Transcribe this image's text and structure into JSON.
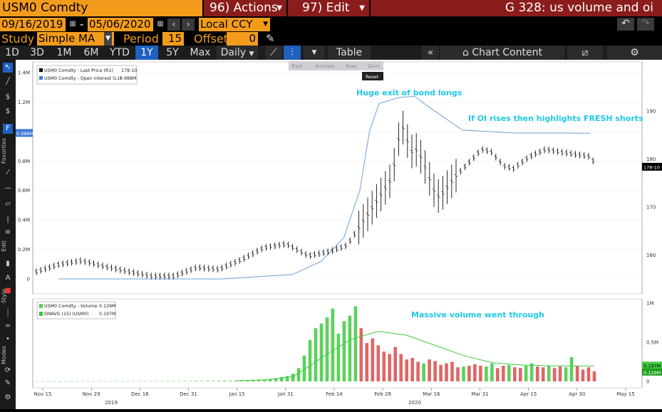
{
  "header": {
    "ticker": "USM0 Comdty",
    "actions_label": "96) Actions",
    "edit_label": "97) Edit",
    "title": "G 328: us volume and oi"
  },
  "dates": {
    "start": "09/16/2019",
    "end": "05/06/2020",
    "currency": "Local CCY"
  },
  "study": {
    "label": "Study",
    "value": "Simple MA",
    "period_label": "Period",
    "period_value": "15",
    "offset_label": "Offset",
    "offset_value": "0"
  },
  "ranges": [
    "1D",
    "3D",
    "1M",
    "6M",
    "YTD",
    "1Y",
    "5Y",
    "Max"
  ],
  "active_range": "1Y",
  "frequency": "Daily",
  "toolbar": {
    "table_label": "Table",
    "chart_content_label": "Chart Content"
  },
  "mini_toolbar": {
    "track": "Track",
    "annotate": "Annotate",
    "news": "News",
    "zoom": "Zoom",
    "reset": "Reset"
  },
  "left_panel": {
    "favorites": "Favorites",
    "edit": "Edit",
    "style": "Style",
    "modes": "Modes"
  },
  "colors": {
    "amber": "#f39c1c",
    "menu_red": "#8b1c1c",
    "active_blue": "#1f5fc0",
    "oi_line": "#6aa0d8",
    "volume_green": "#5bd25b",
    "volume_red": "#e06666",
    "sma_line": "#3ec83e",
    "annotation": "#1ec8e8"
  },
  "chart_data": [
    {
      "type": "line",
      "panel": "upper",
      "legend": [
        {
          "name": "USM0 Comdty - Last Price (R1)",
          "value": "178-10"
        },
        {
          "name": "USM0 Comdty - Open Interest (L1)",
          "value": "0.988M"
        }
      ],
      "left_ticks": [
        "1.4M",
        "1.2M",
        "1M",
        "0.8M",
        "0.6M",
        "0.4M",
        "0.2M",
        "0"
      ],
      "right_ticks": [
        "190",
        "180",
        "170",
        "160"
      ],
      "left_flag": "0.988M",
      "right_flag": "178-10",
      "annotations": [
        "Huge exit of bond longs",
        "If OI rises then highlights FRESH shorts"
      ],
      "ylim_left": [
        0,
        1400000
      ],
      "ylim_right": [
        155,
        198
      ],
      "series": [
        {
          "name": "USM0 Comdty - Open Interest (L1)",
          "axis": "left",
          "x": [
            "2019-11-20",
            "2019-12-15",
            "2020-01-10",
            "2020-02-01",
            "2020-02-10",
            "2020-02-17",
            "2020-02-22",
            "2020-02-25",
            "2020-02-28",
            "2020-03-05",
            "2020-03-10",
            "2020-03-15",
            "2020-03-25",
            "2020-04-10",
            "2020-04-25",
            "2020-05-04"
          ],
          "values": [
            0,
            0,
            0,
            30000,
            120000,
            280000,
            600000,
            1000000,
            1190000,
            1230000,
            1240000,
            1160000,
            1010000,
            990000,
            990000,
            988000
          ]
        },
        {
          "name": "USM0 Comdty - Last Price (R1)",
          "axis": "right",
          "x": [
            "2019-11-13",
            "2019-11-20",
            "2019-11-27",
            "2019-12-05",
            "2019-12-12",
            "2019-12-19",
            "2019-12-26",
            "2020-01-02",
            "2020-01-09",
            "2020-01-16",
            "2020-01-23",
            "2020-01-30",
            "2020-02-06",
            "2020-02-13",
            "2020-02-18",
            "2020-02-21",
            "2020-02-25",
            "2020-02-28",
            "2020-03-03",
            "2020-03-06",
            "2020-03-09",
            "2020-03-11",
            "2020-03-13",
            "2020-03-17",
            "2020-03-19",
            "2020-03-23",
            "2020-03-26",
            "2020-03-31",
            "2020-04-03",
            "2020-04-07",
            "2020-04-10",
            "2020-04-15",
            "2020-04-20",
            "2020-04-24",
            "2020-04-29",
            "2020-05-04",
            "2020-05-06"
          ],
          "values": [
            156.5,
            158.0,
            158.8,
            157.5,
            156.5,
            155.6,
            155.6,
            157.4,
            157.0,
            159.0,
            161.5,
            162.3,
            159.8,
            160.8,
            162.0,
            165.0,
            169.0,
            172.0,
            176.0,
            187.5,
            181.5,
            182.0,
            179.0,
            172.0,
            173.0,
            176.5,
            178.5,
            182.0,
            181.5,
            178.5,
            178.0,
            180.5,
            182.0,
            181.5,
            181.0,
            180.5,
            178.3
          ]
        }
      ]
    },
    {
      "type": "bar",
      "panel": "lower",
      "legend": [
        {
          "name": "USM0 Comdty - Volume",
          "value": "0.129M"
        },
        {
          "name": "SMAVG (15) (USM0)",
          "value": "0.197M"
        }
      ],
      "left_ticks": [
        "1M",
        "0.5M",
        "0"
      ],
      "flags": [
        "0.197M",
        "0.129M"
      ],
      "annotations": [
        "Massive volume went through"
      ],
      "x_labels": [
        "Nov 15",
        "Nov 29",
        "Dec 16",
        "Dec 31",
        "Jan 15",
        "Jan 31",
        "Feb 14",
        "Feb 28",
        "Mar 16",
        "Mar 31",
        "Apr 15",
        "Apr 30",
        "May 15"
      ],
      "year_labels": [
        "2019",
        "2020"
      ],
      "ylim": [
        0,
        1000000
      ],
      "series": [
        {
          "name": "USM0 Comdty - Volume",
          "values": [
            2000,
            2000,
            2000,
            2000,
            2000,
            3000,
            2000,
            2000,
            3000,
            2000,
            3000,
            3000,
            2000,
            3000,
            3000,
            2000,
            3000,
            4000,
            3000,
            3000,
            4000,
            3000,
            4000,
            5000,
            4000,
            5000,
            4000,
            5000,
            6000,
            5000,
            7000,
            6000,
            8000,
            9000,
            8000,
            10000,
            12000,
            11000,
            15000,
            18000,
            22000,
            30000,
            40000,
            55000,
            70000,
            100000,
            170000,
            330000,
            530000,
            680000,
            740000,
            820000,
            930000,
            610000,
            770000,
            840000,
            960000,
            680000,
            490000,
            550000,
            460000,
            380000,
            350000,
            440000,
            350000,
            280000,
            300000,
            250000,
            230000,
            280000,
            260000,
            210000,
            230000,
            250000,
            180000,
            190000,
            200000,
            220000,
            200000,
            190000,
            230000,
            170000,
            200000,
            210000,
            180000,
            170000,
            200000,
            230000,
            190000,
            180000,
            200000,
            170000,
            190000,
            180000,
            310000,
            200000,
            150000,
            180000,
            129000
          ],
          "colors": [
            "g",
            "g",
            "g",
            "g",
            "g",
            "g",
            "g",
            "g",
            "g",
            "g",
            "g",
            "g",
            "g",
            "g",
            "g",
            "g",
            "g",
            "g",
            "g",
            "g",
            "g",
            "g",
            "g",
            "g",
            "g",
            "g",
            "g",
            "g",
            "g",
            "g",
            "g",
            "g",
            "g",
            "g",
            "g",
            "g",
            "g",
            "g",
            "g",
            "g",
            "g",
            "g",
            "g",
            "g",
            "g",
            "g",
            "g",
            "g",
            "g",
            "g",
            "g",
            "g",
            "g",
            "g",
            "g",
            "g",
            "g",
            "r",
            "r",
            "r",
            "r",
            "r",
            "r",
            "r",
            "r",
            "r",
            "r",
            "r",
            "g",
            "r",
            "r",
            "r",
            "r",
            "r",
            "r",
            "g",
            "r",
            "r",
            "r",
            "g",
            "g",
            "r",
            "r",
            "g",
            "r",
            "r",
            "g",
            "g",
            "r",
            "r",
            "g",
            "r",
            "r",
            "g",
            "g",
            "r",
            "r",
            "r",
            "r"
          ]
        },
        {
          "name": "SMAVG (15) (USM0)",
          "x_index": [
            35,
            40,
            45,
            48,
            50,
            55,
            60,
            65,
            70,
            75,
            80,
            85,
            90,
            95,
            98
          ],
          "values": [
            8000,
            20000,
            60000,
            200000,
            300000,
            530000,
            640000,
            590000,
            460000,
            330000,
            240000,
            210000,
            200000,
            198000,
            197000
          ]
        }
      ]
    }
  ]
}
